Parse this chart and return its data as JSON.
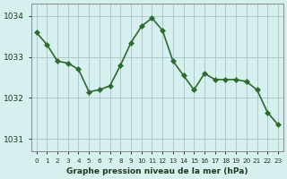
{
  "x": [
    0,
    1,
    2,
    3,
    4,
    5,
    6,
    7,
    8,
    9,
    10,
    11,
    12,
    13,
    14,
    15,
    16,
    17,
    18,
    19,
    20,
    21,
    22,
    23
  ],
  "y": [
    1033.6,
    1033.3,
    1032.9,
    1032.85,
    1032.7,
    1032.15,
    1032.2,
    1032.3,
    1032.8,
    1033.35,
    1033.75,
    1033.95,
    1033.65,
    1032.9,
    1032.55,
    1032.2,
    1032.6,
    1032.45,
    1032.45,
    1032.45,
    1032.4,
    1032.2,
    1031.65,
    1031.35
  ],
  "line_color": "#2d6a2d",
  "marker_color": "#2d6a2d",
  "bg_color": "#d6f0f0",
  "grid_color": "#b0c8c8",
  "xlabel": "Graphe pression niveau de la mer (hPa)",
  "xlabel_color": "#1a3a1a",
  "ylabel_ticks": [
    1031,
    1032,
    1033,
    1034
  ],
  "xtick_labels": [
    "0",
    "1",
    "2",
    "3",
    "4",
    "5",
    "6",
    "7",
    "8",
    "9",
    "10",
    "11",
    "12",
    "13",
    "14",
    "15",
    "16",
    "17",
    "18",
    "19",
    "20",
    "21",
    "22",
    "23"
  ],
  "ylim": [
    1030.7,
    1034.3
  ],
  "xlim": [
    -0.5,
    23.5
  ],
  "title_color": "#1a3a1a",
  "marker_size": 3,
  "line_width": 1.2
}
